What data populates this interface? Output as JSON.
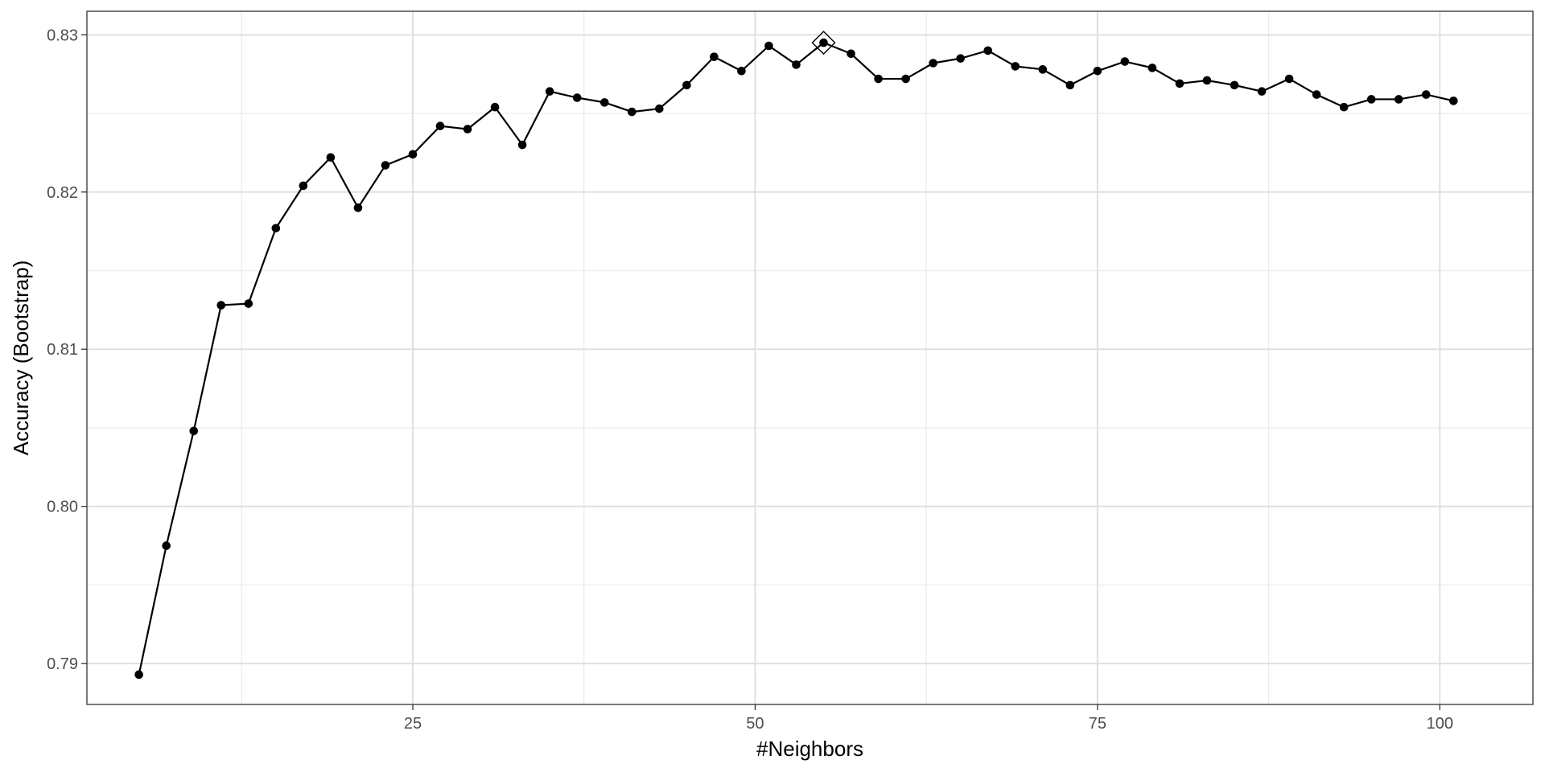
{
  "chart_data": {
    "type": "line",
    "title": "",
    "xlabel": "#Neighbors",
    "ylabel": "Accuracy (Bootstrap)",
    "xlim": [
      1.2,
      106.8
    ],
    "ylim": [
      0.7874,
      0.8315
    ],
    "x_ticks": [
      25,
      50,
      75,
      100
    ],
    "x_tick_labels": [
      "25",
      "50",
      "75",
      "100"
    ],
    "y_ticks": [
      0.79,
      0.8,
      0.81,
      0.82,
      0.83
    ],
    "y_tick_labels": [
      "0.79",
      "0.80",
      "0.81",
      "0.82",
      "0.83"
    ],
    "grid": true,
    "legend": "none",
    "series": [
      {
        "x": [
          5,
          7,
          9,
          11,
          13,
          15,
          17,
          19,
          21,
          23,
          25,
          27,
          29,
          31,
          33,
          35,
          37,
          39,
          41,
          43,
          45,
          47,
          49,
          51,
          53,
          55,
          57,
          59,
          61,
          63,
          65,
          67,
          69,
          71,
          73,
          75,
          77,
          79,
          81,
          83,
          85,
          87,
          89,
          91,
          93,
          95,
          97,
          99,
          101
        ],
        "values": [
          0.7893,
          0.7975,
          0.8048,
          0.8128,
          0.8129,
          0.8177,
          0.8204,
          0.8222,
          0.819,
          0.8217,
          0.8224,
          0.8242,
          0.824,
          0.8254,
          0.823,
          0.8264,
          0.826,
          0.8257,
          0.8251,
          0.8253,
          0.8268,
          0.8286,
          0.8277,
          0.8293,
          0.8281,
          0.8295,
          0.8288,
          0.8272,
          0.8272,
          0.8282,
          0.8285,
          0.829,
          0.828,
          0.8278,
          0.8268,
          0.8277,
          0.8283,
          0.8279,
          0.8269,
          0.8271,
          0.8268,
          0.8264,
          0.8272,
          0.8262,
          0.8254,
          0.8259,
          0.8259,
          0.8262,
          0.8258
        ]
      }
    ],
    "best_point": {
      "x": 55,
      "y": 0.8295
    }
  }
}
